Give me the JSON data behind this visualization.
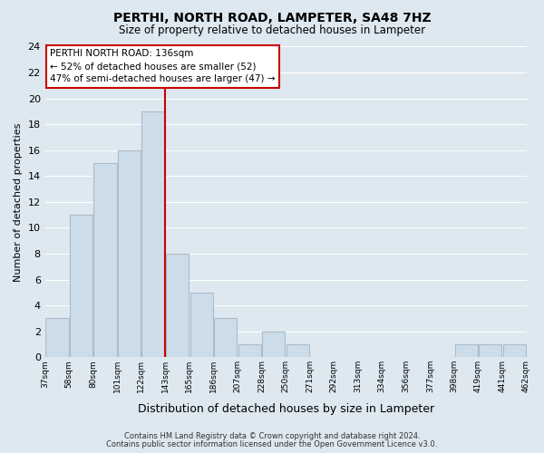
{
  "title": "PERTHI, NORTH ROAD, LAMPETER, SA48 7HZ",
  "subtitle": "Size of property relative to detached houses in Lampeter",
  "xlabel": "Distribution of detached houses by size in Lampeter",
  "ylabel": "Number of detached properties",
  "categories": [
    "37sqm",
    "58sqm",
    "80sqm",
    "101sqm",
    "122sqm",
    "143sqm",
    "165sqm",
    "186sqm",
    "207sqm",
    "228sqm",
    "250sqm",
    "271sqm",
    "292sqm",
    "313sqm",
    "334sqm",
    "356sqm",
    "377sqm",
    "398sqm",
    "419sqm",
    "441sqm",
    "462sqm"
  ],
  "bar_heights": [
    3,
    11,
    15,
    16,
    19,
    8,
    5,
    3,
    1,
    2,
    1,
    0,
    0,
    0,
    0,
    0,
    0,
    1,
    1,
    1
  ],
  "bar_color": "#ccdce8",
  "bar_edge_color": "#aabccc",
  "marker_bin_index": 5,
  "marker_label": "PERTHI NORTH ROAD: 136sqm",
  "annotation_line1": "← 52% of detached houses are smaller (52)",
  "annotation_line2": "47% of semi-detached houses are larger (47) →",
  "annotation_box_color": "#ffffff",
  "annotation_box_edge": "#cc0000",
  "marker_line_color": "#cc0000",
  "ylim": [
    0,
    24
  ],
  "yticks": [
    0,
    2,
    4,
    6,
    8,
    10,
    12,
    14,
    16,
    18,
    20,
    22,
    24
  ],
  "grid_color": "#ffffff",
  "bg_color": "#dde8f0",
  "title_fontsize": 10,
  "subtitle_fontsize": 8.5,
  "footer1": "Contains HM Land Registry data © Crown copyright and database right 2024.",
  "footer2": "Contains public sector information licensed under the Open Government Licence v3.0."
}
